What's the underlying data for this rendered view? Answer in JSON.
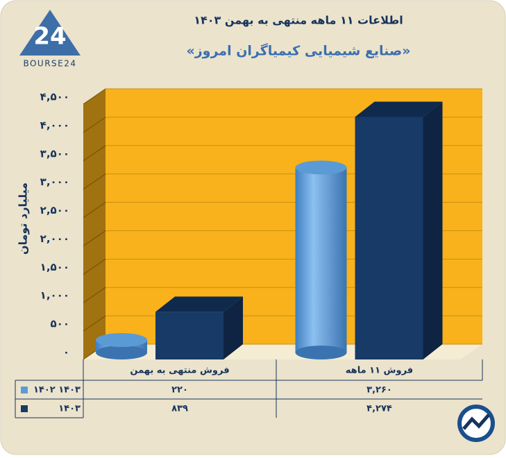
{
  "logo_mark": "24",
  "logo_text": "BOURSE24",
  "chart_data": {
    "type": "bar3d",
    "title": "اطلاعات ۱۱ ماهه منتهی به بهمن ۱۴۰۳",
    "subtitle": "«صنایع شیمیایی کیمیاگران امروز»",
    "y_label": "میلیارد تومان",
    "categories": [
      "فروش منتهی به بهمن",
      "فروش ۱۱ ماهه"
    ],
    "series": [
      {
        "name": "۱۴۰۲ ۱۴۰۳",
        "color": "#5b9bd5",
        "shape": "cylinder",
        "values": [
          220,
          3260
        ],
        "value_labels": [
          "۲۲۰",
          "۳,۲۶۰"
        ]
      },
      {
        "name": "۱۴۰۳",
        "color": "#173a66",
        "shape": "box",
        "values": [
          839,
          4274
        ],
        "value_labels": [
          "۸۳۹",
          "۴,۲۷۴"
        ]
      }
    ],
    "ylim": [
      0,
      4500
    ],
    "yticks": [
      {
        "value": 0,
        "label": "۰"
      },
      {
        "value": 500,
        "label": "۵۰۰"
      },
      {
        "value": 1000,
        "label": "۱,۰۰۰"
      },
      {
        "value": 1500,
        "label": "۱,۵۰۰"
      },
      {
        "value": 2000,
        "label": "۲,۰۰۰"
      },
      {
        "value": 2500,
        "label": "۲,۵۰۰"
      },
      {
        "value": 3000,
        "label": "۳,۰۰۰"
      },
      {
        "value": 3500,
        "label": "۳,۵۰۰"
      },
      {
        "value": 4000,
        "label": "۴,۰۰۰"
      },
      {
        "value": 4500,
        "label": "۴,۵۰۰"
      }
    ],
    "grid": true
  }
}
